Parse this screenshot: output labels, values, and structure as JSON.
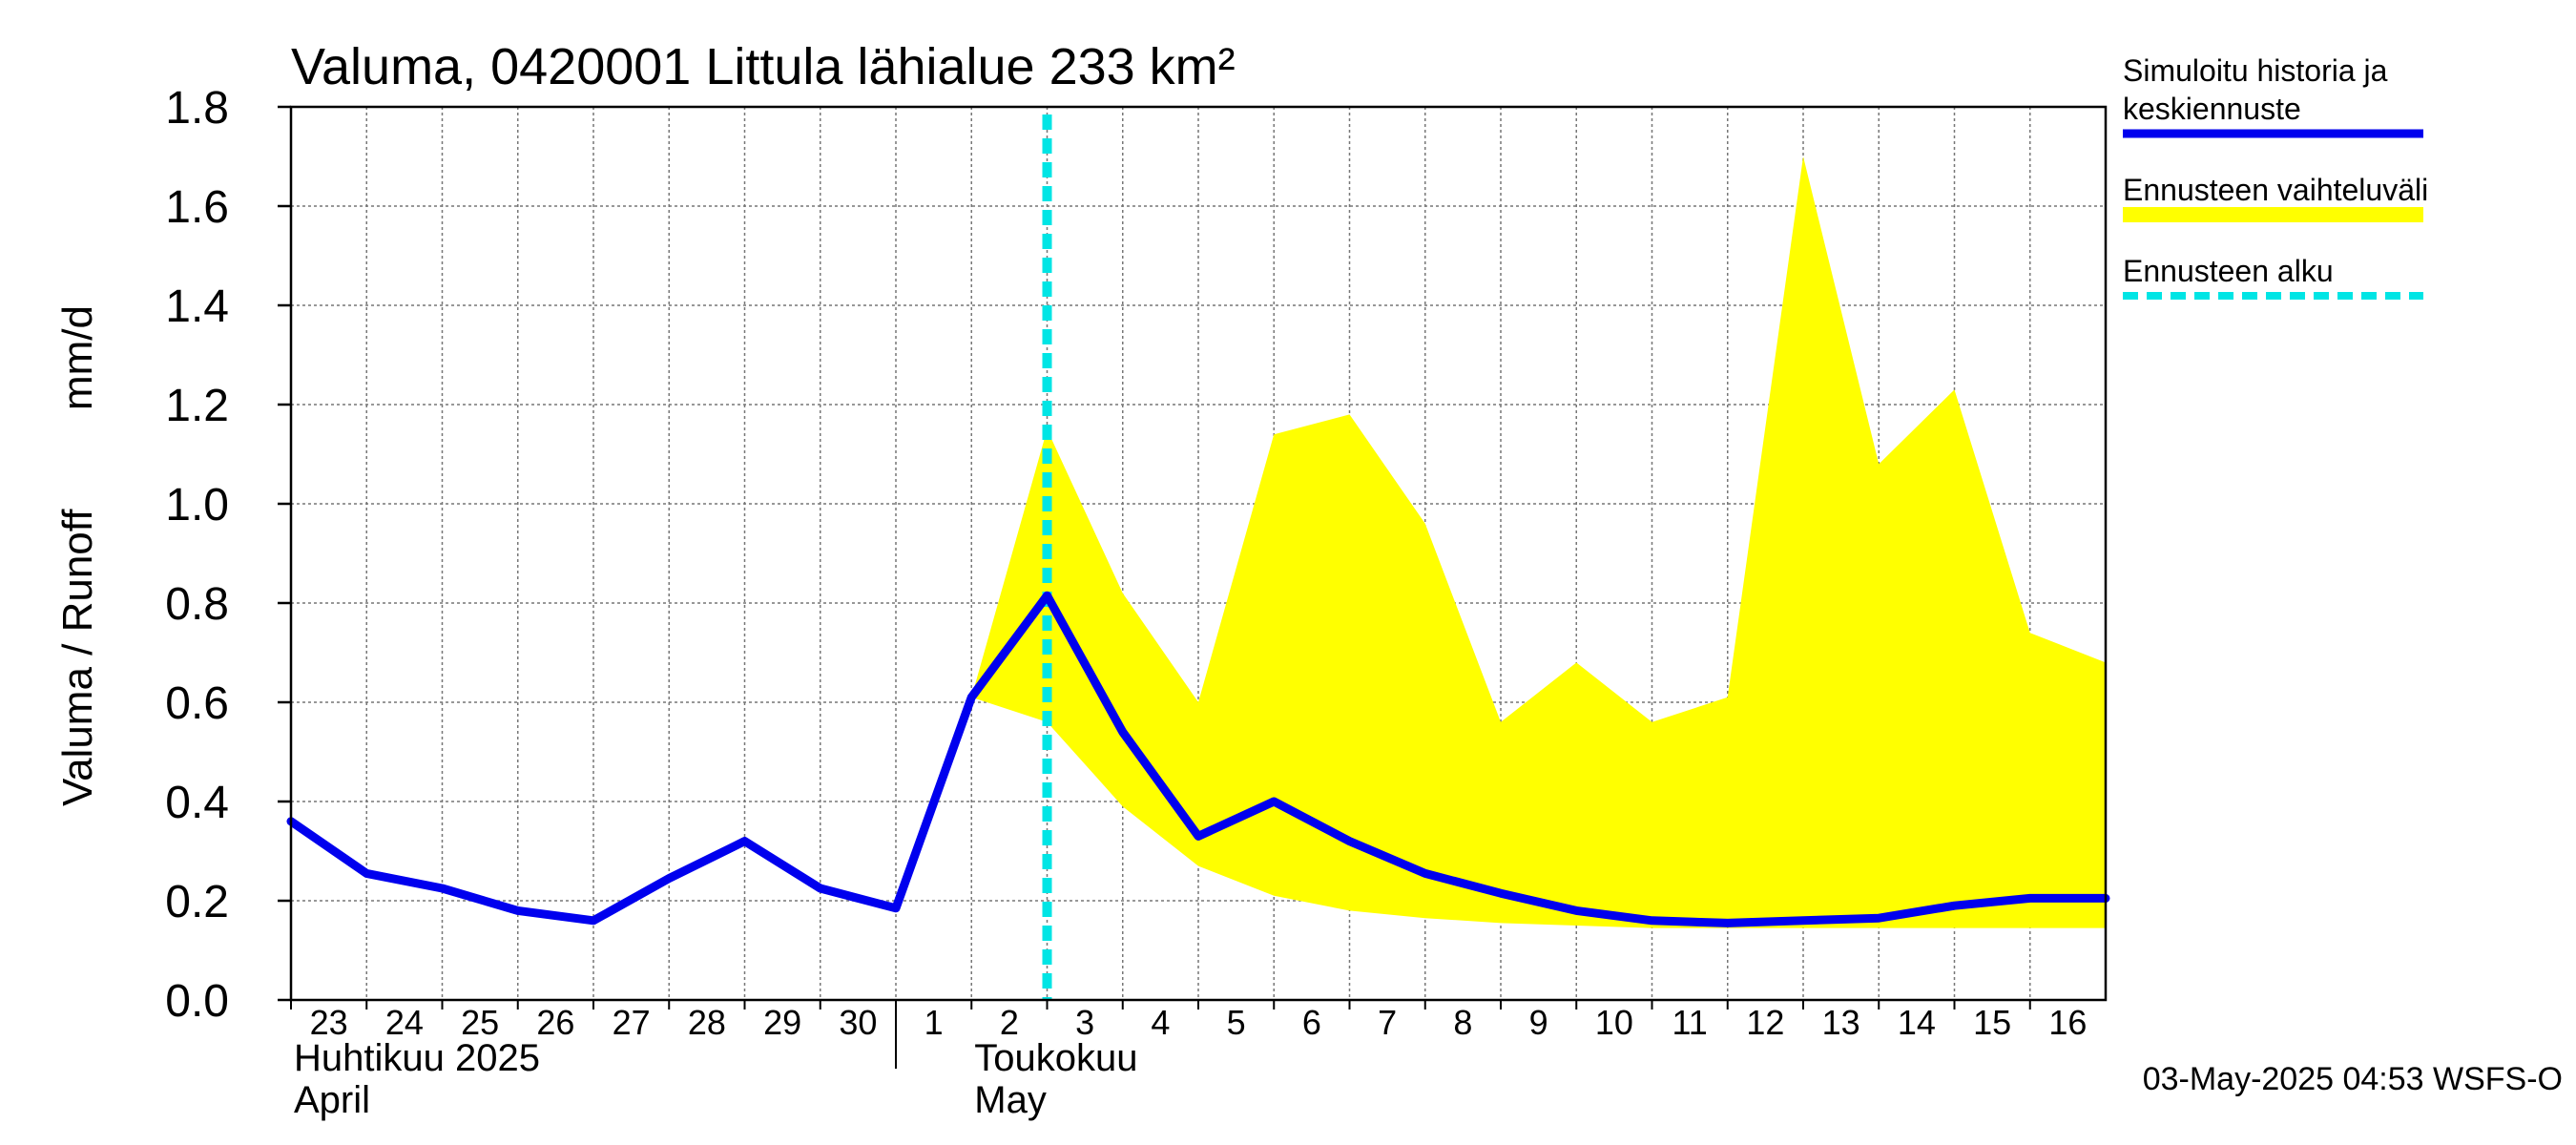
{
  "chart_data": {
    "type": "area",
    "title": "Valuma, 0420001 Littula lähialue 233 km²",
    "ylabel": "Valuma / Runoff",
    "yunit": "mm/d",
    "ylim": [
      0,
      1.8
    ],
    "yticks": [
      "0.0",
      "0.2",
      "0.4",
      "0.6",
      "0.8",
      "1.0",
      "1.2",
      "1.4",
      "1.6",
      "1.8"
    ],
    "x_tick_labels": [
      "23",
      "24",
      "25",
      "26",
      "27",
      "28",
      "29",
      "30",
      "1",
      "2",
      "3",
      "4",
      "5",
      "6",
      "7",
      "8",
      "9",
      "10",
      "11",
      "12",
      "13",
      "14",
      "15",
      "16"
    ],
    "month_labels": [
      {
        "line1": "Huhtikuu  2025",
        "line2": "April"
      },
      {
        "line1": "Toukokuu",
        "line2": "May"
      }
    ],
    "grid": true,
    "legend_position": "right",
    "x": [
      "2025-04-23",
      "2025-04-24",
      "2025-04-25",
      "2025-04-26",
      "2025-04-27",
      "2025-04-28",
      "2025-04-29",
      "2025-04-30",
      "2025-05-01",
      "2025-05-02",
      "2025-05-03",
      "2025-05-04",
      "2025-05-05",
      "2025-05-06",
      "2025-05-07",
      "2025-05-08",
      "2025-05-09",
      "2025-05-10",
      "2025-05-11",
      "2025-05-12",
      "2025-05-13",
      "2025-05-14",
      "2025-05-15",
      "2025-05-16",
      "2025-05-17"
    ],
    "series": [
      {
        "name": "Simuloitu historia ja keskiennuste",
        "color": "#0000ee",
        "values": [
          0.36,
          0.255,
          0.225,
          0.18,
          0.16,
          0.245,
          0.32,
          0.225,
          0.185,
          0.61,
          0.815,
          0.54,
          0.33,
          0.4,
          0.32,
          0.255,
          0.215,
          0.18,
          0.16,
          0.155,
          0.16,
          0.165,
          0.19,
          0.205,
          0.205
        ]
      }
    ],
    "band": {
      "name": "Ennusteen vaihteluväli",
      "color": "#ffff00",
      "x": [
        "2025-05-02",
        "2025-05-03",
        "2025-05-04",
        "2025-05-05",
        "2025-05-06",
        "2025-05-07",
        "2025-05-08",
        "2025-05-09",
        "2025-05-10",
        "2025-05-11",
        "2025-05-12",
        "2025-05-13",
        "2025-05-14",
        "2025-05-15",
        "2025-05-16",
        "2025-05-17"
      ],
      "upper": [
        0.61,
        1.15,
        0.82,
        0.6,
        1.14,
        1.18,
        0.96,
        0.56,
        0.68,
        0.56,
        0.61,
        1.7,
        1.08,
        1.23,
        0.74,
        0.68
      ],
      "lower": [
        0.61,
        0.56,
        0.39,
        0.27,
        0.21,
        0.18,
        0.165,
        0.155,
        0.15,
        0.145,
        0.145,
        0.145,
        0.145,
        0.145,
        0.145,
        0.145
      ]
    },
    "forecast_start": {
      "name": "Ennusteen alku",
      "x": "2025-05-03",
      "color": "#00e5e5"
    },
    "legend": [
      {
        "label_lines": [
          "Simuloitu historia ja",
          "keskiennuste"
        ],
        "color": "#0000ee",
        "style": "solid"
      },
      {
        "label_lines": [
          "Ennusteen vaihteluväli"
        ],
        "color": "#ffff00",
        "style": "band"
      },
      {
        "label_lines": [
          "Ennusteen alku"
        ],
        "color": "#00e5e5",
        "style": "dashed"
      }
    ],
    "footer": "03-May-2025 04:53 WSFS-O"
  }
}
